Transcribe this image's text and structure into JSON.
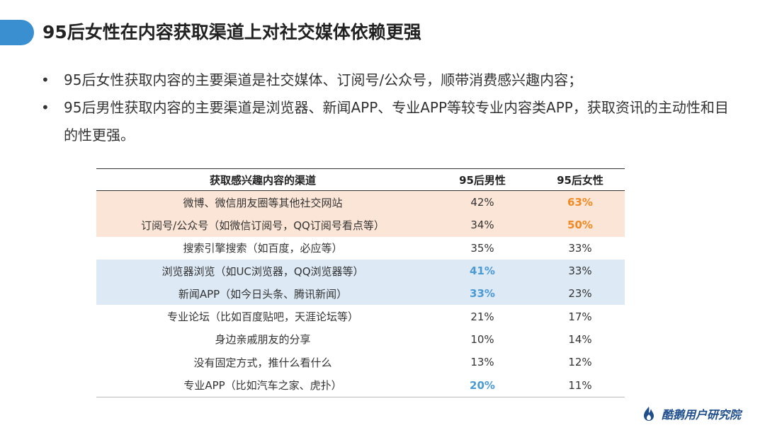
{
  "slide": {
    "title": "95后女性在内容获取渠道上对社交媒体依赖更强",
    "bullets": [
      "95后女性获取内容的主要渠道是社交媒体、订阅号/公众号，顺带消费感兴趣内容；",
      "95后男性获取内容的主要渠道是浏览器、新闻APP、专业APP等较专业内容类APP，获取资讯的主动性和目的性更强。"
    ],
    "bullet_marker": "•"
  },
  "table": {
    "headers": [
      "获取感兴趣内容的渠道",
      "95后男性",
      "95后女性"
    ],
    "rows": [
      {
        "channel": "微博、微信朋友圈等其他社交网站",
        "male": "42%",
        "female": "63%"
      },
      {
        "channel": "订阅号/公众号（如微信订阅号，QQ订阅号看点等）",
        "male": "34%",
        "female": "50%"
      },
      {
        "channel": "搜索引擎搜索（如百度，必应等）",
        "male": "35%",
        "female": "33%"
      },
      {
        "channel": "浏览器浏览（如UC浏览器，QQ浏览器等）",
        "male": "41%",
        "female": "33%"
      },
      {
        "channel": "新闻APP（如今日头条、腾讯新闻）",
        "male": "33%",
        "female": "23%"
      },
      {
        "channel": "专业论坛（比如百度贴吧，天涯论坛等）",
        "male": "21%",
        "female": "17%"
      },
      {
        "channel": "身边亲戚朋友的分享",
        "male": "10%",
        "female": "14%"
      },
      {
        "channel": "没有固定方式，推什么看什么",
        "male": "13%",
        "female": "12%"
      },
      {
        "channel": "专业APP（比如汽车之家、虎扑）",
        "male": "20%",
        "female": "11%"
      }
    ]
  },
  "logo": {
    "text": "酷鹅用户研究院",
    "icon": "penguin-flame-icon"
  },
  "colors": {
    "accent_blue": "#3a8fd0",
    "highlight_orange": "#f08a24",
    "highlight_blue": "#4a9ad4",
    "row_orange_bg": "#fbe5d6",
    "row_blue_bg": "#dde9f5"
  }
}
